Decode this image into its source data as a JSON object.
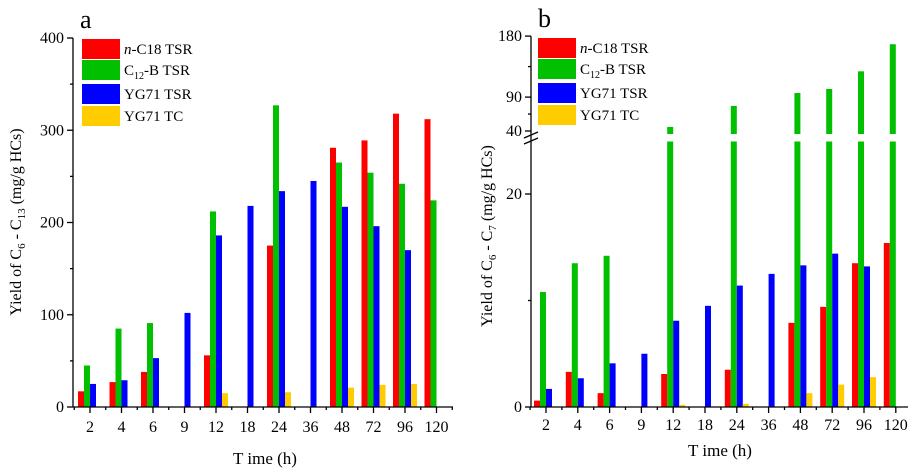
{
  "colors": {
    "n_c18_tsr": "#FF0000",
    "c12_b_tsr": "#00C000",
    "yg71_tsr": "#0000FF",
    "yg71_tc": "#FFCC00"
  },
  "chart_data": [
    {
      "type": "bar",
      "panel_label": "a",
      "title": "",
      "xlabel": "T ime (h)",
      "ylabel": {
        "prefix": "Yield  of C",
        "sub1": "6",
        "mid": " - C",
        "sub2": "13",
        "suffix": "  (mg/g HCs)"
      },
      "categories": [
        "2",
        "4",
        "6",
        "9",
        "12",
        "18",
        "24",
        "36",
        "48",
        "72",
        "96",
        "120"
      ],
      "ylim": [
        0,
        400
      ],
      "yticks": [
        0,
        100,
        200,
        300,
        400
      ],
      "y_minor_ticks": [
        50,
        150,
        250,
        350
      ],
      "grid": false,
      "legend_position": "top-left",
      "series": [
        {
          "name": "n-C18 TSR",
          "legend": {
            "italic": "n",
            "rest": "-C18 TSR"
          },
          "color_key": "n_c18_tsr",
          "values": [
            17,
            27,
            38,
            null,
            56,
            null,
            175,
            null,
            281,
            289,
            318,
            312
          ]
        },
        {
          "name": "C12-B TSR",
          "legend": {
            "pre": "C",
            "sub": "12",
            "rest": "-B TSR"
          },
          "color_key": "c12_b_tsr",
          "values": [
            45,
            85,
            91,
            null,
            212,
            null,
            327,
            null,
            265,
            254,
            242,
            224
          ]
        },
        {
          "name": "YG71 TSR",
          "legend": {
            "rest": "YG71 TSR"
          },
          "color_key": "yg71_tsr",
          "values": [
            25,
            29,
            53,
            102,
            186,
            218,
            234,
            245,
            217,
            196,
            170,
            null
          ]
        },
        {
          "name": "YG71 TC",
          "legend": {
            "rest": "YG71 TC"
          },
          "color_key": "yg71_tc",
          "values": [
            null,
            null,
            null,
            null,
            15,
            null,
            16,
            null,
            21,
            24,
            25,
            null
          ]
        }
      ]
    },
    {
      "type": "bar",
      "panel_label": "b",
      "title": "",
      "xlabel": "T ime (h)",
      "ylabel": {
        "prefix": "Yield of C",
        "sub1": "6",
        "mid": " - C",
        "sub2": "7",
        "suffix": " (mg/g HCs)"
      },
      "categories": [
        "2",
        "4",
        "6",
        "9",
        "12",
        "18",
        "24",
        "36",
        "48",
        "72",
        "96",
        "120"
      ],
      "y_axis_break": {
        "lower_range": [
          0,
          20
        ],
        "upper_range": [
          40,
          180
        ]
      },
      "yticks": [
        0,
        20,
        40,
        90,
        180
      ],
      "y_minor_ticks": [
        10,
        65,
        135
      ],
      "grid": false,
      "legend_position": "top-left",
      "series": [
        {
          "name": "n-C18 TSR",
          "legend": {
            "italic": "n",
            "rest": "-C18 TSR"
          },
          "color_key": "n_c18_tsr",
          "values": [
            0.6,
            3.3,
            1.3,
            null,
            3.1,
            null,
            3.5,
            null,
            7.9,
            9.4,
            13.5,
            15.4
          ]
        },
        {
          "name": "C12-B TSR",
          "legend": {
            "pre": "C",
            "sub": "12",
            "rest": "-B TSR"
          },
          "color_key": "c12_b_tsr",
          "values": [
            10.8,
            13.5,
            14.2,
            null,
            46,
            null,
            77,
            null,
            96,
            102,
            128,
            168
          ]
        },
        {
          "name": "YG71 TSR",
          "legend": {
            "rest": "YG71 TSR"
          },
          "color_key": "yg71_tsr",
          "values": [
            1.7,
            2.7,
            4.1,
            5.0,
            8.1,
            9.5,
            11.4,
            12.5,
            13.3,
            14.4,
            13.2,
            null
          ]
        },
        {
          "name": "YG71 TC",
          "legend": {
            "rest": "YG71 TC"
          },
          "color_key": "yg71_tc",
          "values": [
            null,
            null,
            null,
            null,
            0.2,
            null,
            0.3,
            null,
            1.3,
            2.1,
            2.8,
            null
          ]
        }
      ]
    }
  ]
}
